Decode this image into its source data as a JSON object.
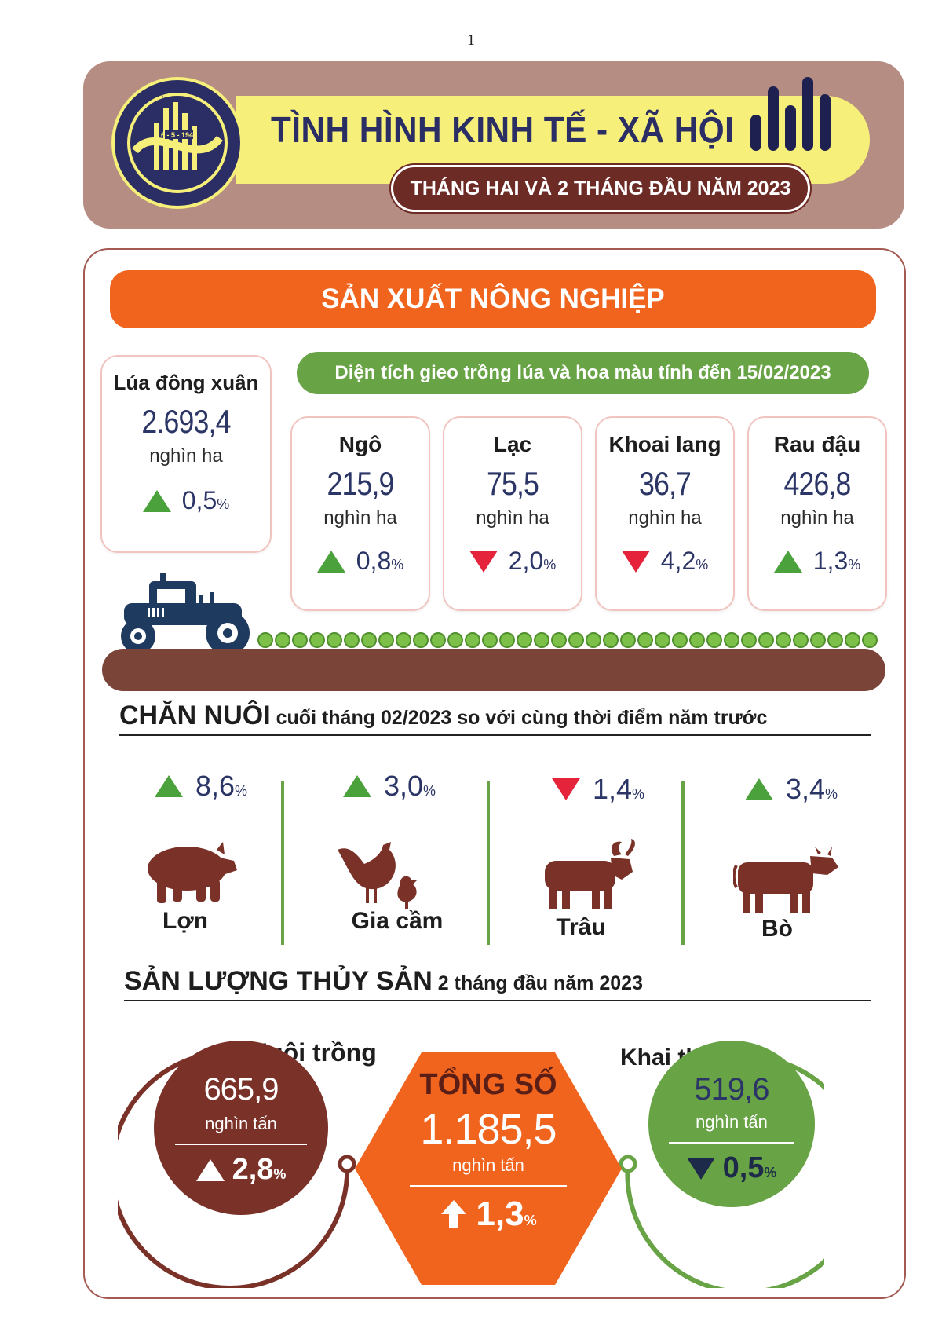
{
  "page_number": "1",
  "header": {
    "title": "TÌNH HÌNH KINH TẾ - XÃ HỘI",
    "subtitle": "THÁNG HAI VÀ 2 THÁNG ĐẦU NĂM 2023",
    "logo_text_top": "CHXHCN VIỆT NAM",
    "logo_text_date": "6 - 5 - 1946",
    "logo_text_bottom": "TỔNG CỤC THỐNG KÊ"
  },
  "agriculture": {
    "banner": "SẢN XUẤT NÔNG NGHIỆP",
    "rice": {
      "name": "Lúa đông xuân",
      "value": "2.693,4",
      "unit": "nghìn ha",
      "change": "0,5",
      "pct": "%",
      "direction": "up"
    },
    "area_title": "Diện tích gieo trồng lúa và hoa màu tính đến 15/02/2023",
    "crops": [
      {
        "name": "Ngô",
        "value": "215,9",
        "unit": "nghìn ha",
        "change": "0,8",
        "pct": "%",
        "direction": "up"
      },
      {
        "name": "Lạc",
        "value": "75,5",
        "unit": "nghìn ha",
        "change": "2,0",
        "pct": "%",
        "direction": "down"
      },
      {
        "name": "Khoai lang",
        "value": "36,7",
        "unit": "nghìn ha",
        "change": "4,2",
        "pct": "%",
        "direction": "down"
      },
      {
        "name": "Rau đậu",
        "value": "426,8",
        "unit": "nghìn ha",
        "change": "1,3",
        "pct": "%",
        "direction": "up"
      }
    ]
  },
  "livestock": {
    "title_big": "CHĂN NUÔI",
    "title_small": " cuối tháng 02/2023 so với cùng thời điểm năm trước",
    "items": [
      {
        "name": "Lợn",
        "change": "8,6",
        "pct": "%",
        "direction": "up",
        "icon": "pig-icon"
      },
      {
        "name": "Gia cầm",
        "change": "3,0",
        "pct": "%",
        "direction": "up",
        "icon": "poultry-icon"
      },
      {
        "name": "Trâu",
        "change": "1,4",
        "pct": "%",
        "direction": "down",
        "icon": "buffalo-icon"
      },
      {
        "name": "Bò",
        "change": "3,4",
        "pct": "%",
        "direction": "up",
        "icon": "cow-icon"
      }
    ]
  },
  "fishery": {
    "title_big": "SẢN LƯỢNG THỦY SẢN",
    "title_small": " 2 tháng đầu năm 2023",
    "aquaculture": {
      "label": "Nuôi trồng",
      "value": "665,9",
      "unit": "nghìn tấn",
      "change": "2,8",
      "pct": "%"
    },
    "total": {
      "label": "TỔNG SỐ",
      "value": "1.185,5",
      "unit": "nghìn tấn",
      "change": "1,3",
      "pct": "%"
    },
    "capture": {
      "label": "Khai thác",
      "value": "519,6",
      "unit": "nghìn tấn",
      "change": "0,5",
      "pct": "%"
    }
  },
  "colors": {
    "brown": "#7a3128",
    "orange": "#f0641e",
    "green": "#68a345",
    "navy": "#2b3566",
    "up": "#4ba23c",
    "down": "#e5243b"
  }
}
